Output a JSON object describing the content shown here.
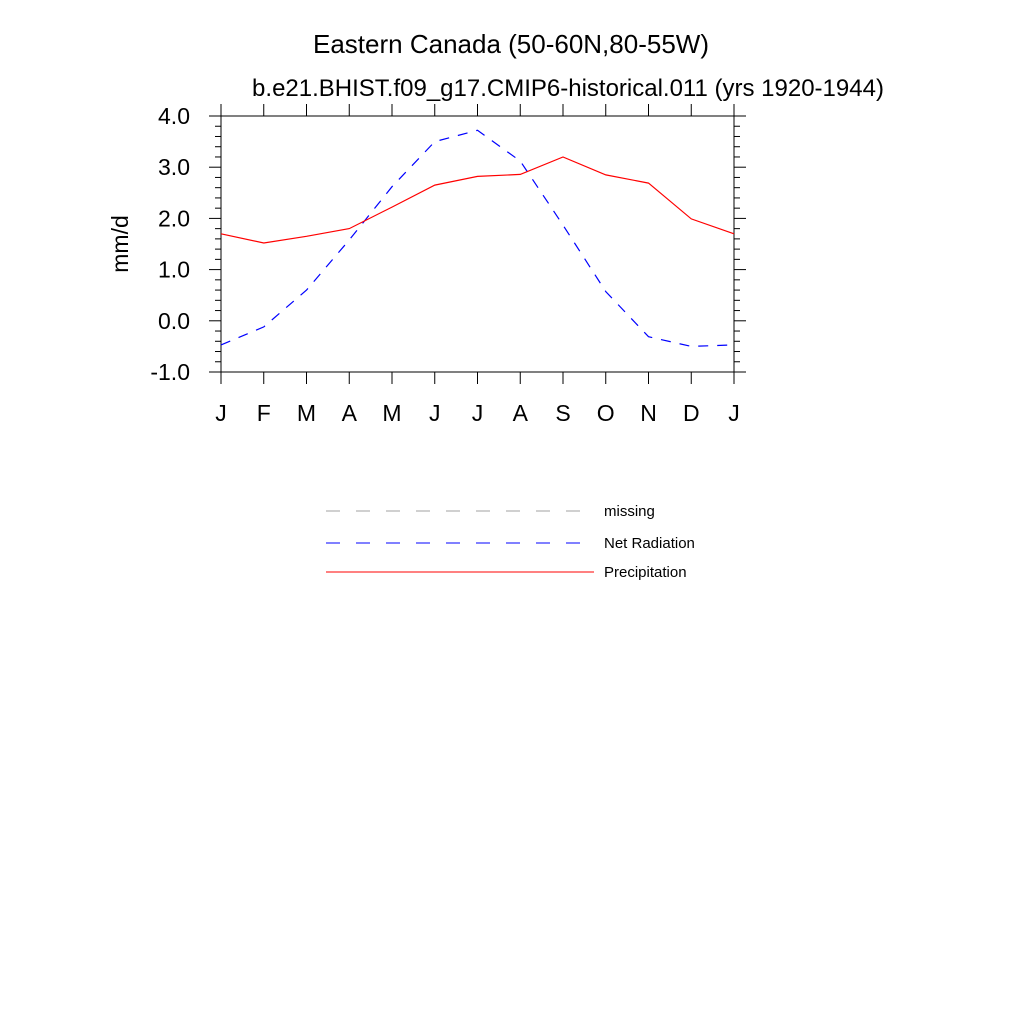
{
  "chart_data": {
    "type": "line",
    "title": "Eastern Canada (50-60N,80-55W)",
    "subtitle": "b.e21.BHIST.f09_g17.CMIP6-historical.011 (yrs 1920-1944)",
    "xlabel": "",
    "ylabel": "mm/d",
    "categories": [
      "J",
      "F",
      "M",
      "A",
      "M",
      "J",
      "J",
      "A",
      "S",
      "O",
      "N",
      "D",
      "J"
    ],
    "ylim": [
      -1.0,
      4.0
    ],
    "yticks": [
      -1.0,
      0.0,
      1.0,
      2.0,
      3.0,
      4.0
    ],
    "ytick_labels": [
      "-1.0",
      "0.0",
      "1.0",
      "2.0",
      "3.0",
      "4.0"
    ],
    "grid": false,
    "legend_position": "bottom",
    "series": [
      {
        "name": "Net Radiation",
        "color": "#0000ff",
        "dash": "dashed",
        "values": [
          -0.47,
          -0.12,
          0.6,
          1.58,
          2.62,
          3.5,
          3.72,
          3.12,
          1.87,
          0.57,
          -0.31,
          -0.5,
          -0.47
        ]
      },
      {
        "name": "Precipitation",
        "color": "#ff0000",
        "dash": "solid",
        "values": [
          1.7,
          1.52,
          1.65,
          1.8,
          2.22,
          2.65,
          2.82,
          2.86,
          3.2,
          2.85,
          2.69,
          1.99,
          1.7
        ]
      }
    ],
    "legend": [
      {
        "label": "missing",
        "color": "#a0a0a0",
        "dash": "dashed"
      },
      {
        "label": "Net Radiation",
        "color": "#0000ff",
        "dash": "dashed"
      },
      {
        "label": "Precipitation",
        "color": "#ff0000",
        "dash": "solid"
      }
    ]
  }
}
